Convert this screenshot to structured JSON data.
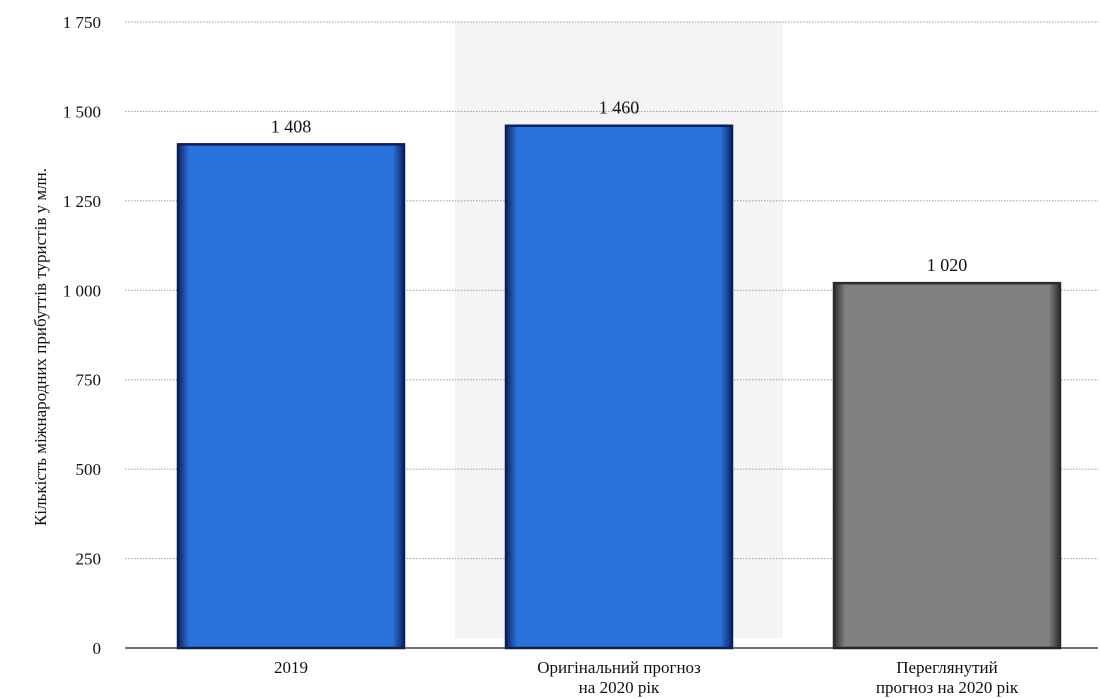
{
  "chart_data": {
    "type": "bar",
    "ylabel": "Кількість міжнародних прибуттів туристів у млн.",
    "xlabel": "",
    "ylim": [
      0,
      1750
    ],
    "yticks": [
      0,
      250,
      500,
      750,
      1000,
      1250,
      1500,
      1750
    ],
    "ytick_labels": [
      "0",
      "250",
      "500",
      "750",
      "1 000",
      "1 250",
      "1 500",
      "1 750"
    ],
    "grid": true,
    "categories": [
      [
        "2019"
      ],
      [
        "Оригінальний прогноз",
        "на 2020 рік"
      ],
      [
        "Переглянутий",
        "прогноз на 2020 рік"
      ]
    ],
    "values": [
      1408,
      1460,
      1020
    ],
    "data_labels": [
      "1 408",
      "1 460",
      "1 020"
    ],
    "bar_colors": [
      "#2a72dc",
      "#2a72dc",
      "#7f7f7f"
    ],
    "bar_edge_colors": [
      "#0b1f5c",
      "#0b1f5c",
      "#2b2b2b"
    ],
    "highlight_column_index": 1,
    "highlight_color": "#f4f4f4"
  }
}
